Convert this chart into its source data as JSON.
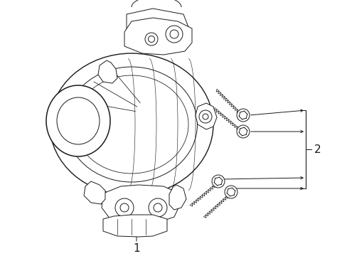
{
  "bg_color": "#ffffff",
  "line_color": "#1a1a1a",
  "label1": "1",
  "label2": "2",
  "fig_width": 4.89,
  "fig_height": 3.6,
  "dpi": 100
}
